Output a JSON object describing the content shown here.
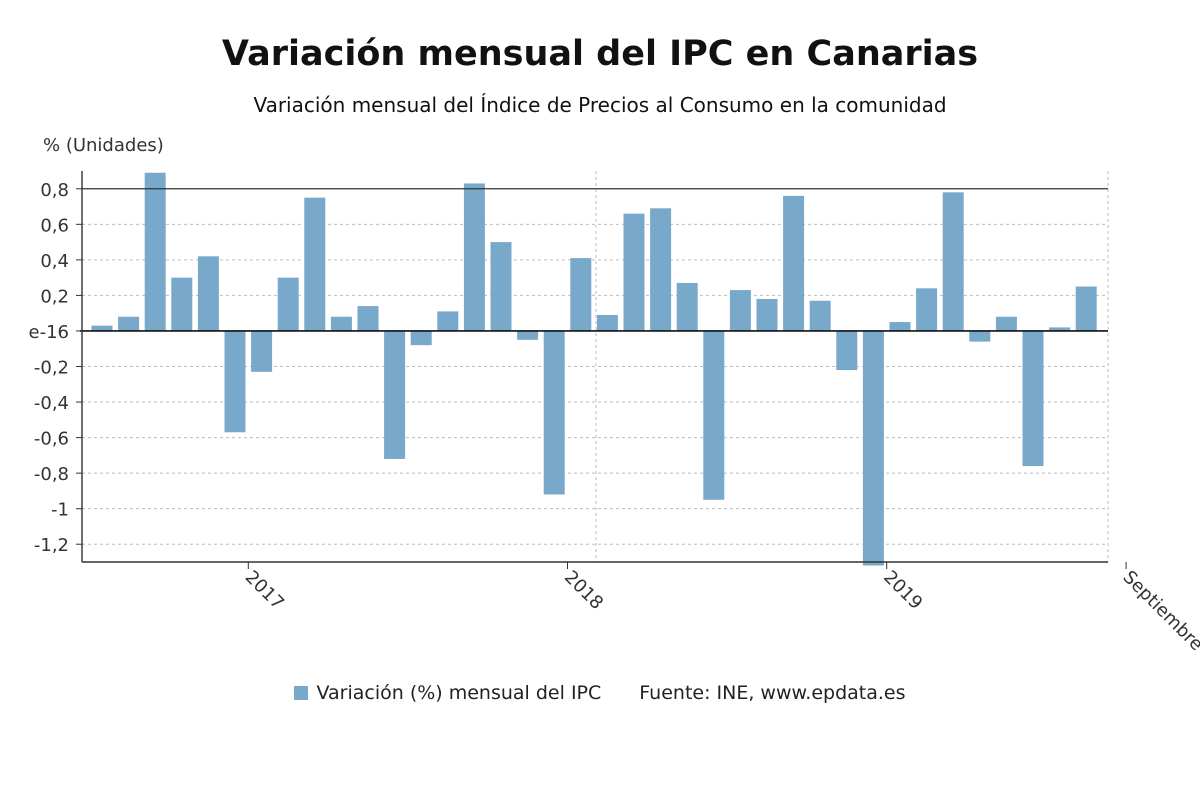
{
  "chart_data": {
    "type": "bar",
    "title": "Variación mensual del IPC en Canarias",
    "subtitle": "Variación mensual del Índice de Precios al Consumo en la comunidad",
    "ylabel": "% (Unidades)",
    "ylim": [
      -1.3,
      0.9
    ],
    "yticks": [
      {
        "value": 0.8,
        "label": "0,8"
      },
      {
        "value": 0.6,
        "label": "0,6"
      },
      {
        "value": 0.4,
        "label": "0,4"
      },
      {
        "value": 0.2,
        "label": "0,2"
      },
      {
        "value": 0,
        "label": "e-16"
      },
      {
        "value": -0.2,
        "label": "-0,2"
      },
      {
        "value": -0.4,
        "label": "-0,4"
      },
      {
        "value": -0.6,
        "label": "-0,6"
      },
      {
        "value": -0.8,
        "label": "-0,8"
      },
      {
        "value": -1,
        "label": "-1"
      },
      {
        "value": -1.2,
        "label": "-1,2"
      }
    ],
    "xticks": [
      {
        "label": "2017",
        "at_bar": 5.5
      },
      {
        "label": "2018",
        "at_bar": 17.5
      },
      {
        "label": "2019",
        "at_bar": 29.5
      },
      {
        "label": "Septiembre",
        "at_bar": 38.5
      }
    ],
    "series": [
      {
        "name": "Variación (%) mensual del IPC",
        "color": "#78a9cb",
        "values": [
          0.03,
          0.08,
          0.89,
          0.3,
          0.42,
          -0.57,
          -0.23,
          0.3,
          0.75,
          0.08,
          0.14,
          -0.72,
          -0.08,
          0.11,
          0.83,
          0.5,
          -0.05,
          -0.92,
          0.41,
          0.09,
          0.66,
          0.69,
          0.27,
          -0.95,
          0.23,
          0.18,
          0.76,
          0.17,
          -0.22,
          -1.32,
          0.05,
          0.24,
          0.78,
          -0.06,
          0.08,
          -0.76,
          0.02,
          0.25
        ]
      }
    ],
    "grid": true,
    "legend_position": "bottom"
  },
  "legend": {
    "series_label": "Variación (%) mensual del IPC",
    "source": "Fuente: INE, www.epdata.es"
  }
}
